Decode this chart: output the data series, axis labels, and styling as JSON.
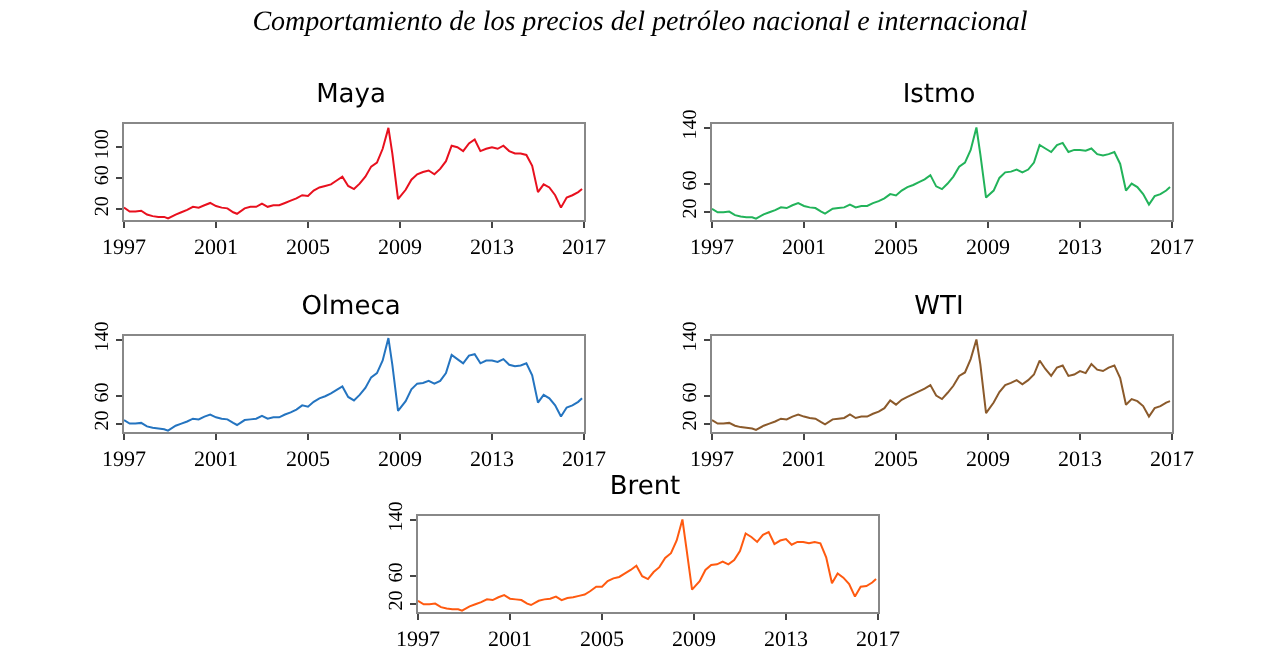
{
  "chart_data": [
    {
      "type": "line",
      "title": "Maya",
      "annotations": [
        "Comportamiento de los precios del petróleo nacional e internacional"
      ],
      "xlim": [
        "1997",
        "2017"
      ],
      "xticks": [
        "1997",
        "2001",
        "2005",
        "2009",
        "2013",
        "2017"
      ],
      "ylim": [
        6,
        130
      ],
      "yticks": [
        20,
        60,
        100
      ],
      "grid": false,
      "legend": false,
      "x": [
        "1997-01",
        "1997-04",
        "1997-07",
        "1997-10",
        "1998-01",
        "1998-04",
        "1998-07",
        "1998-10",
        "1998-12",
        "1999-04",
        "1999-07",
        "1999-10",
        "2000-01",
        "2000-04",
        "2000-07",
        "2000-10",
        "2001-01",
        "2001-04",
        "2001-07",
        "2001-10",
        "2001-12",
        "2002-04",
        "2002-07",
        "2002-10",
        "2003-01",
        "2003-04",
        "2003-07",
        "2003-10",
        "2004-01",
        "2004-04",
        "2004-07",
        "2004-10",
        "2005-01",
        "2005-04",
        "2005-07",
        "2005-10",
        "2006-01",
        "2006-04",
        "2006-07",
        "2006-10",
        "2007-01",
        "2007-04",
        "2007-07",
        "2007-10",
        "2008-01",
        "2008-04",
        "2008-07",
        "2008-09",
        "2008-12",
        "2009-04",
        "2009-07",
        "2009-10",
        "2010-01",
        "2010-04",
        "2010-07",
        "2010-10",
        "2011-01",
        "2011-04",
        "2011-07",
        "2011-10",
        "2012-01",
        "2012-04",
        "2012-07",
        "2012-10",
        "2013-01",
        "2013-04",
        "2013-07",
        "2013-10",
        "2014-01",
        "2014-04",
        "2014-07",
        "2014-10",
        "2015-01",
        "2015-04",
        "2015-07",
        "2015-10",
        "2016-01",
        "2016-04",
        "2016-07",
        "2016-10",
        "2016-12"
      ],
      "series": [
        {
          "color": "#e8101e",
          "values": [
            22,
            17,
            17,
            18,
            13,
            11,
            10,
            10,
            8,
            13,
            16,
            19,
            23,
            22,
            25,
            28,
            24,
            22,
            21,
            16,
            14,
            21,
            23,
            23,
            27,
            23,
            25,
            25,
            28,
            31,
            34,
            38,
            37,
            44,
            48,
            50,
            52,
            57,
            62,
            50,
            46,
            53,
            62,
            75,
            80,
            98,
            125,
            92,
            33,
            45,
            58,
            65,
            68,
            70,
            65,
            72,
            82,
            102,
            100,
            95,
            105,
            110,
            95,
            98,
            100,
            98,
            102,
            95,
            92,
            92,
            90,
            76,
            42,
            52,
            48,
            38,
            22,
            35,
            38,
            42,
            46
          ]
        }
      ]
    },
    {
      "type": "line",
      "title": "Istmo",
      "xlim": [
        "1997",
        "2017"
      ],
      "xticks": [
        "1997",
        "2001",
        "2005",
        "2009",
        "2013",
        "2017"
      ],
      "ylim": [
        8,
        145
      ],
      "yticks": [
        20,
        60,
        140
      ],
      "grid": false,
      "legend": false,
      "x": [
        "1997-01",
        "1997-04",
        "1997-07",
        "1997-10",
        "1998-01",
        "1998-04",
        "1998-07",
        "1998-10",
        "1998-12",
        "1999-04",
        "1999-07",
        "1999-10",
        "2000-01",
        "2000-04",
        "2000-07",
        "2000-10",
        "2001-01",
        "2001-04",
        "2001-07",
        "2001-10",
        "2001-12",
        "2002-04",
        "2002-07",
        "2002-10",
        "2003-01",
        "2003-04",
        "2003-07",
        "2003-10",
        "2004-01",
        "2004-04",
        "2004-07",
        "2004-10",
        "2005-01",
        "2005-04",
        "2005-07",
        "2005-10",
        "2006-01",
        "2006-04",
        "2006-07",
        "2006-10",
        "2007-01",
        "2007-04",
        "2007-07",
        "2007-10",
        "2008-01",
        "2008-04",
        "2008-07",
        "2008-09",
        "2008-12",
        "2009-04",
        "2009-07",
        "2009-10",
        "2010-01",
        "2010-04",
        "2010-07",
        "2010-10",
        "2011-01",
        "2011-04",
        "2011-07",
        "2011-10",
        "2012-01",
        "2012-04",
        "2012-07",
        "2012-10",
        "2013-01",
        "2013-04",
        "2013-07",
        "2013-10",
        "2014-01",
        "2014-04",
        "2014-07",
        "2014-10",
        "2015-01",
        "2015-04",
        "2015-07",
        "2015-10",
        "2016-01",
        "2016-04",
        "2016-07",
        "2016-10",
        "2016-12"
      ],
      "series": [
        {
          "color": "#22b35a",
          "values": [
            24,
            19,
            19,
            20,
            15,
            13,
            12,
            12,
            10,
            16,
            19,
            22,
            26,
            25,
            29,
            32,
            28,
            26,
            25,
            20,
            17,
            24,
            25,
            26,
            30,
            26,
            28,
            28,
            32,
            35,
            39,
            45,
            43,
            50,
            55,
            58,
            62,
            66,
            72,
            56,
            52,
            60,
            70,
            84,
            90,
            108,
            140,
            102,
            40,
            50,
            68,
            76,
            77,
            80,
            76,
            80,
            90,
            115,
            110,
            105,
            115,
            118,
            105,
            108,
            108,
            107,
            110,
            102,
            100,
            102,
            105,
            88,
            50,
            60,
            55,
            45,
            30,
            42,
            45,
            50,
            55
          ]
        }
      ]
    },
    {
      "type": "line",
      "title": "Olmeca",
      "xlim": [
        "1997",
        "2017"
      ],
      "xticks": [
        "1997",
        "2001",
        "2005",
        "2009",
        "2013",
        "2017"
      ],
      "ylim": [
        8,
        145
      ],
      "yticks": [
        20,
        60,
        140
      ],
      "grid": false,
      "legend": false,
      "x": [
        "1997-01",
        "1997-04",
        "1997-07",
        "1997-10",
        "1998-01",
        "1998-04",
        "1998-07",
        "1998-10",
        "1998-12",
        "1999-04",
        "1999-07",
        "1999-10",
        "2000-01",
        "2000-04",
        "2000-07",
        "2000-10",
        "2001-01",
        "2001-04",
        "2001-07",
        "2001-10",
        "2001-12",
        "2002-04",
        "2002-07",
        "2002-10",
        "2003-01",
        "2003-04",
        "2003-07",
        "2003-10",
        "2004-01",
        "2004-04",
        "2004-07",
        "2004-10",
        "2005-01",
        "2005-04",
        "2005-07",
        "2005-10",
        "2006-01",
        "2006-04",
        "2006-07",
        "2006-10",
        "2007-01",
        "2007-04",
        "2007-07",
        "2007-10",
        "2008-01",
        "2008-04",
        "2008-07",
        "2008-09",
        "2008-12",
        "2009-04",
        "2009-07",
        "2009-10",
        "2010-01",
        "2010-04",
        "2010-07",
        "2010-10",
        "2011-01",
        "2011-04",
        "2011-07",
        "2011-10",
        "2012-01",
        "2012-04",
        "2012-07",
        "2012-10",
        "2013-01",
        "2013-04",
        "2013-07",
        "2013-10",
        "2014-01",
        "2014-04",
        "2014-07",
        "2014-10",
        "2015-01",
        "2015-04",
        "2015-07",
        "2015-10",
        "2016-01",
        "2016-04",
        "2016-07",
        "2016-10",
        "2016-12"
      ],
      "series": [
        {
          "color": "#2474c0",
          "values": [
            25,
            20,
            20,
            21,
            16,
            14,
            13,
            12,
            10,
            17,
            20,
            23,
            27,
            26,
            30,
            33,
            29,
            27,
            26,
            21,
            18,
            25,
            26,
            27,
            31,
            27,
            29,
            29,
            33,
            36,
            40,
            46,
            44,
            51,
            56,
            59,
            63,
            68,
            73,
            58,
            53,
            61,
            71,
            86,
            92,
            110,
            142,
            104,
            38,
            52,
            69,
            77,
            78,
            81,
            77,
            81,
            92,
            118,
            112,
            106,
            117,
            119,
            106,
            110,
            110,
            108,
            112,
            104,
            102,
            103,
            106,
            89,
            50,
            61,
            56,
            46,
            30,
            43,
            46,
            51,
            56
          ]
        }
      ]
    },
    {
      "type": "line",
      "title": "WTI",
      "xlim": [
        "1997",
        "2017"
      ],
      "xticks": [
        "1997",
        "2001",
        "2005",
        "2009",
        "2013",
        "2017"
      ],
      "ylim": [
        8,
        145
      ],
      "yticks": [
        20,
        60,
        140
      ],
      "grid": false,
      "legend": false,
      "x": [
        "1997-01",
        "1997-04",
        "1997-07",
        "1997-10",
        "1998-01",
        "1998-04",
        "1998-07",
        "1998-10",
        "1998-12",
        "1999-04",
        "1999-07",
        "1999-10",
        "2000-01",
        "2000-04",
        "2000-07",
        "2000-10",
        "2001-01",
        "2001-04",
        "2001-07",
        "2001-10",
        "2001-12",
        "2002-04",
        "2002-07",
        "2002-10",
        "2003-01",
        "2003-04",
        "2003-07",
        "2003-10",
        "2004-01",
        "2004-04",
        "2004-07",
        "2004-10",
        "2005-01",
        "2005-04",
        "2005-07",
        "2005-10",
        "2006-01",
        "2006-04",
        "2006-07",
        "2006-10",
        "2007-01",
        "2007-04",
        "2007-07",
        "2007-10",
        "2008-01",
        "2008-04",
        "2008-07",
        "2008-09",
        "2008-12",
        "2009-04",
        "2009-07",
        "2009-10",
        "2010-01",
        "2010-04",
        "2010-07",
        "2010-10",
        "2011-01",
        "2011-04",
        "2011-07",
        "2011-10",
        "2012-01",
        "2012-04",
        "2012-07",
        "2012-10",
        "2013-01",
        "2013-04",
        "2013-07",
        "2013-10",
        "2014-01",
        "2014-04",
        "2014-07",
        "2014-10",
        "2015-01",
        "2015-04",
        "2015-07",
        "2015-10",
        "2016-01",
        "2016-04",
        "2016-07",
        "2016-10",
        "2016-12"
      ],
      "series": [
        {
          "color": "#8b5a2b",
          "values": [
            25,
            20,
            20,
            21,
            17,
            15,
            14,
            13,
            11,
            17,
            20,
            23,
            27,
            26,
            30,
            33,
            30,
            28,
            27,
            22,
            19,
            26,
            27,
            28,
            33,
            28,
            30,
            30,
            34,
            37,
            42,
            53,
            47,
            54,
            58,
            62,
            66,
            70,
            75,
            60,
            55,
            64,
            74,
            88,
            93,
            112,
            140,
            105,
            35,
            50,
            65,
            75,
            78,
            82,
            76,
            82,
            90,
            110,
            98,
            88,
            100,
            103,
            88,
            90,
            95,
            92,
            105,
            97,
            95,
            100,
            103,
            85,
            47,
            55,
            52,
            45,
            30,
            42,
            45,
            50,
            52
          ]
        }
      ]
    },
    {
      "type": "line",
      "title": "Brent",
      "xlim": [
        "1997",
        "2017"
      ],
      "xticks": [
        "1997",
        "2001",
        "2005",
        "2009",
        "2013",
        "2017"
      ],
      "ylim": [
        8,
        145
      ],
      "yticks": [
        20,
        60,
        140
      ],
      "grid": false,
      "legend": false,
      "x": [
        "1997-01",
        "1997-04",
        "1997-07",
        "1997-10",
        "1998-01",
        "1998-04",
        "1998-07",
        "1998-10",
        "1998-12",
        "1999-04",
        "1999-07",
        "1999-10",
        "2000-01",
        "2000-04",
        "2000-07",
        "2000-10",
        "2001-01",
        "2001-04",
        "2001-07",
        "2001-10",
        "2001-12",
        "2002-04",
        "2002-07",
        "2002-10",
        "2003-01",
        "2003-04",
        "2003-07",
        "2003-10",
        "2004-01",
        "2004-04",
        "2004-07",
        "2004-10",
        "2005-01",
        "2005-04",
        "2005-07",
        "2005-10",
        "2006-01",
        "2006-04",
        "2006-07",
        "2006-10",
        "2007-01",
        "2007-04",
        "2007-07",
        "2007-10",
        "2008-01",
        "2008-04",
        "2008-07",
        "2008-09",
        "2008-12",
        "2009-04",
        "2009-07",
        "2009-10",
        "2010-01",
        "2010-04",
        "2010-07",
        "2010-10",
        "2011-01",
        "2011-04",
        "2011-07",
        "2011-10",
        "2012-01",
        "2012-04",
        "2012-07",
        "2012-10",
        "2013-01",
        "2013-04",
        "2013-07",
        "2013-10",
        "2014-01",
        "2014-04",
        "2014-07",
        "2014-10",
        "2015-01",
        "2015-04",
        "2015-07",
        "2015-10",
        "2016-01",
        "2016-04",
        "2016-07",
        "2016-10",
        "2016-12"
      ],
      "series": [
        {
          "color": "#ff5a10",
          "values": [
            24,
            19,
            19,
            20,
            15,
            13,
            12,
            12,
            10,
            16,
            19,
            22,
            26,
            25,
            29,
            32,
            27,
            26,
            25,
            20,
            18,
            24,
            26,
            27,
            30,
            25,
            28,
            29,
            31,
            33,
            38,
            44,
            44,
            52,
            56,
            58,
            63,
            68,
            74,
            59,
            55,
            65,
            72,
            85,
            92,
            110,
            140,
            100,
            40,
            52,
            68,
            75,
            76,
            80,
            76,
            82,
            95,
            120,
            115,
            108,
            118,
            122,
            105,
            110,
            112,
            104,
            108,
            108,
            106,
            108,
            106,
            86,
            49,
            63,
            57,
            48,
            30,
            44,
            45,
            50,
            55
          ]
        }
      ]
    }
  ]
}
